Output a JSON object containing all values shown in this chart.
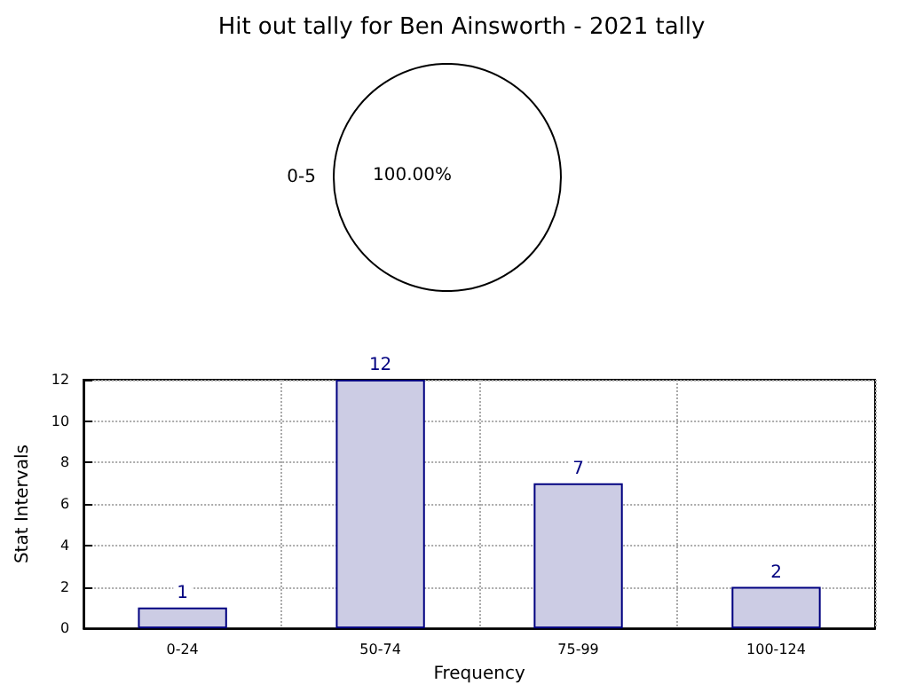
{
  "chart_data": [
    {
      "type": "pie",
      "title": "Hit out tally for Ben Ainsworth - 2021 tally",
      "categories": [
        "0-5"
      ],
      "values": [
        100
      ],
      "colors": [
        "#ffffff"
      ],
      "value_labels": [
        "100.00%"
      ]
    },
    {
      "type": "bar",
      "xlabel": "Frequency",
      "ylabel": "Stat Intervals",
      "categories": [
        "0-24",
        "50-74",
        "75-99",
        "100-124"
      ],
      "values": [
        1,
        12,
        7,
        2
      ],
      "color": "#ccccE4",
      "ylim": [
        0,
        12
      ],
      "yticks": [
        0,
        2,
        4,
        6,
        8,
        10,
        12
      ],
      "grid": true,
      "data_labels": true
    }
  ]
}
